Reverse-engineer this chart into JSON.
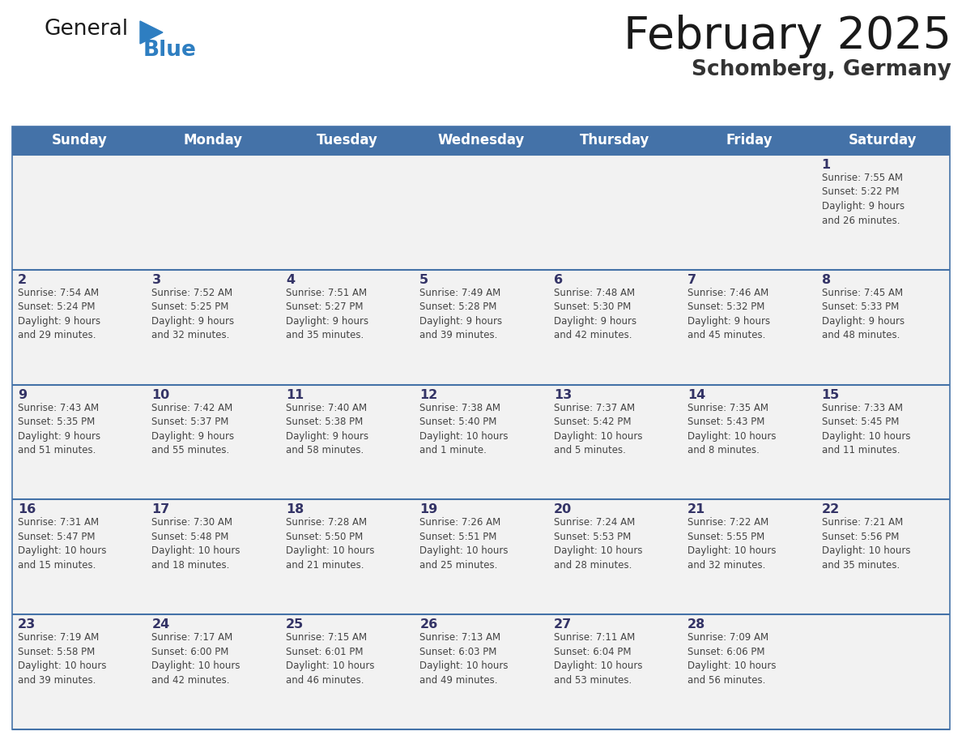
{
  "title": "February 2025",
  "subtitle": "Schomberg, Germany",
  "days_of_week": [
    "Sunday",
    "Monday",
    "Tuesday",
    "Wednesday",
    "Thursday",
    "Friday",
    "Saturday"
  ],
  "header_bg": "#4472A8",
  "header_text": "#FFFFFF",
  "row_bg": "#F2F2F2",
  "row_border_color": "#4472A8",
  "day_number_color": "#333366",
  "text_color": "#444444",
  "title_color": "#1a1a1a",
  "subtitle_color": "#333333",
  "logo_general_color": "#1a1a1a",
  "logo_blue_color": "#2E7EC1",
  "weeks": [
    [
      {
        "day": null,
        "info": null
      },
      {
        "day": null,
        "info": null
      },
      {
        "day": null,
        "info": null
      },
      {
        "day": null,
        "info": null
      },
      {
        "day": null,
        "info": null
      },
      {
        "day": null,
        "info": null
      },
      {
        "day": 1,
        "info": "Sunrise: 7:55 AM\nSunset: 5:22 PM\nDaylight: 9 hours\nand 26 minutes."
      }
    ],
    [
      {
        "day": 2,
        "info": "Sunrise: 7:54 AM\nSunset: 5:24 PM\nDaylight: 9 hours\nand 29 minutes."
      },
      {
        "day": 3,
        "info": "Sunrise: 7:52 AM\nSunset: 5:25 PM\nDaylight: 9 hours\nand 32 minutes."
      },
      {
        "day": 4,
        "info": "Sunrise: 7:51 AM\nSunset: 5:27 PM\nDaylight: 9 hours\nand 35 minutes."
      },
      {
        "day": 5,
        "info": "Sunrise: 7:49 AM\nSunset: 5:28 PM\nDaylight: 9 hours\nand 39 minutes."
      },
      {
        "day": 6,
        "info": "Sunrise: 7:48 AM\nSunset: 5:30 PM\nDaylight: 9 hours\nand 42 minutes."
      },
      {
        "day": 7,
        "info": "Sunrise: 7:46 AM\nSunset: 5:32 PM\nDaylight: 9 hours\nand 45 minutes."
      },
      {
        "day": 8,
        "info": "Sunrise: 7:45 AM\nSunset: 5:33 PM\nDaylight: 9 hours\nand 48 minutes."
      }
    ],
    [
      {
        "day": 9,
        "info": "Sunrise: 7:43 AM\nSunset: 5:35 PM\nDaylight: 9 hours\nand 51 minutes."
      },
      {
        "day": 10,
        "info": "Sunrise: 7:42 AM\nSunset: 5:37 PM\nDaylight: 9 hours\nand 55 minutes."
      },
      {
        "day": 11,
        "info": "Sunrise: 7:40 AM\nSunset: 5:38 PM\nDaylight: 9 hours\nand 58 minutes."
      },
      {
        "day": 12,
        "info": "Sunrise: 7:38 AM\nSunset: 5:40 PM\nDaylight: 10 hours\nand 1 minute."
      },
      {
        "day": 13,
        "info": "Sunrise: 7:37 AM\nSunset: 5:42 PM\nDaylight: 10 hours\nand 5 minutes."
      },
      {
        "day": 14,
        "info": "Sunrise: 7:35 AM\nSunset: 5:43 PM\nDaylight: 10 hours\nand 8 minutes."
      },
      {
        "day": 15,
        "info": "Sunrise: 7:33 AM\nSunset: 5:45 PM\nDaylight: 10 hours\nand 11 minutes."
      }
    ],
    [
      {
        "day": 16,
        "info": "Sunrise: 7:31 AM\nSunset: 5:47 PM\nDaylight: 10 hours\nand 15 minutes."
      },
      {
        "day": 17,
        "info": "Sunrise: 7:30 AM\nSunset: 5:48 PM\nDaylight: 10 hours\nand 18 minutes."
      },
      {
        "day": 18,
        "info": "Sunrise: 7:28 AM\nSunset: 5:50 PM\nDaylight: 10 hours\nand 21 minutes."
      },
      {
        "day": 19,
        "info": "Sunrise: 7:26 AM\nSunset: 5:51 PM\nDaylight: 10 hours\nand 25 minutes."
      },
      {
        "day": 20,
        "info": "Sunrise: 7:24 AM\nSunset: 5:53 PM\nDaylight: 10 hours\nand 28 minutes."
      },
      {
        "day": 21,
        "info": "Sunrise: 7:22 AM\nSunset: 5:55 PM\nDaylight: 10 hours\nand 32 minutes."
      },
      {
        "day": 22,
        "info": "Sunrise: 7:21 AM\nSunset: 5:56 PM\nDaylight: 10 hours\nand 35 minutes."
      }
    ],
    [
      {
        "day": 23,
        "info": "Sunrise: 7:19 AM\nSunset: 5:58 PM\nDaylight: 10 hours\nand 39 minutes."
      },
      {
        "day": 24,
        "info": "Sunrise: 7:17 AM\nSunset: 6:00 PM\nDaylight: 10 hours\nand 42 minutes."
      },
      {
        "day": 25,
        "info": "Sunrise: 7:15 AM\nSunset: 6:01 PM\nDaylight: 10 hours\nand 46 minutes."
      },
      {
        "day": 26,
        "info": "Sunrise: 7:13 AM\nSunset: 6:03 PM\nDaylight: 10 hours\nand 49 minutes."
      },
      {
        "day": 27,
        "info": "Sunrise: 7:11 AM\nSunset: 6:04 PM\nDaylight: 10 hours\nand 53 minutes."
      },
      {
        "day": 28,
        "info": "Sunrise: 7:09 AM\nSunset: 6:06 PM\nDaylight: 10 hours\nand 56 minutes."
      },
      {
        "day": null,
        "info": null
      }
    ]
  ]
}
